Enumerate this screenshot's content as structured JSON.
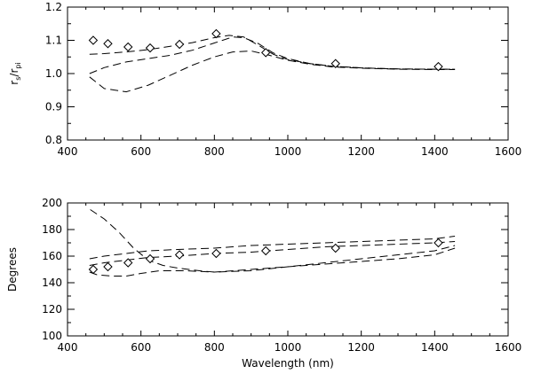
{
  "chart_data": [
    {
      "type": "line",
      "title": "",
      "xlabel": "",
      "ylabel_main": "r",
      "ylabel_sub1": "s",
      "ylabel_sep": "/r",
      "ylabel_sub2": "pi",
      "xlim": [
        400,
        1600
      ],
      "ylim": [
        0.8,
        1.2
      ],
      "xticks": [
        "400",
        "600",
        "800",
        "1000",
        "1200",
        "1400",
        "1600"
      ],
      "yticks": [
        "0.8",
        "0.9",
        "1.0",
        "1.1",
        "1.2"
      ],
      "grid": false,
      "markers": {
        "x": [
          470,
          510,
          565,
          625,
          705,
          805,
          940,
          1130,
          1410
        ],
        "y": [
          1.1,
          1.09,
          1.08,
          1.077,
          1.088,
          1.12,
          1.063,
          1.03,
          1.021
        ]
      },
      "series": [
        {
          "x": [
            460,
            500,
            560,
            620,
            680,
            740,
            800,
            840,
            880,
            920,
            960,
            1000,
            1060,
            1120,
            1200,
            1300,
            1400,
            1455
          ],
          "y": [
            1.058,
            1.06,
            1.065,
            1.072,
            1.082,
            1.093,
            1.108,
            1.115,
            1.11,
            1.085,
            1.058,
            1.042,
            1.03,
            1.022,
            1.017,
            1.014,
            1.013,
            1.013
          ]
        },
        {
          "x": [
            460,
            500,
            560,
            620,
            680,
            740,
            800,
            850,
            880,
            920,
            960,
            1000,
            1060,
            1120,
            1200,
            1300,
            1400,
            1455
          ],
          "y": [
            1.0,
            1.018,
            1.035,
            1.045,
            1.055,
            1.07,
            1.092,
            1.11,
            1.108,
            1.09,
            1.062,
            1.045,
            1.03,
            1.022,
            1.017,
            1.014,
            1.013,
            1.013
          ]
        },
        {
          "x": [
            460,
            500,
            560,
            620,
            680,
            740,
            800,
            850,
            900,
            950,
            1000,
            1060,
            1120,
            1200,
            1300,
            1400,
            1455
          ],
          "y": [
            0.99,
            0.955,
            0.945,
            0.965,
            0.995,
            1.025,
            1.05,
            1.065,
            1.068,
            1.055,
            1.04,
            1.028,
            1.02,
            1.016,
            1.013,
            1.012,
            1.012
          ]
        }
      ]
    },
    {
      "type": "line",
      "title": "",
      "xlabel": "Wavelength (nm)",
      "ylabel": "Degrees",
      "xlim": [
        400,
        1600
      ],
      "ylim": [
        100,
        200
      ],
      "xticks": [
        "400",
        "600",
        "800",
        "1000",
        "1200",
        "1400",
        "1600"
      ],
      "yticks": [
        "100",
        "120",
        "140",
        "160",
        "180",
        "200"
      ],
      "grid": false,
      "markers": {
        "x": [
          470,
          510,
          565,
          625,
          705,
          805,
          940,
          1130,
          1410
        ],
        "y": [
          150,
          152,
          155,
          158,
          161,
          162,
          164,
          166,
          170
        ]
      },
      "series": [
        {
          "x": [
            460,
            500,
            560,
            620,
            700,
            800,
            900,
            1000,
            1100,
            1200,
            1300,
            1400,
            1455
          ],
          "y": [
            158,
            160,
            162,
            164,
            165,
            166,
            168,
            169,
            170,
            171,
            172,
            173,
            175
          ]
        },
        {
          "x": [
            460,
            500,
            560,
            620,
            700,
            800,
            900,
            1000,
            1100,
            1200,
            1300,
            1400,
            1455
          ],
          "y": [
            153,
            155,
            157,
            159,
            160,
            162,
            163,
            165,
            167,
            168,
            169,
            170,
            171
          ]
        },
        {
          "x": [
            460,
            480,
            520,
            560,
            600,
            650,
            720,
            800,
            900,
            1000,
            1100,
            1200,
            1300,
            1400,
            1455
          ],
          "y": [
            148,
            146,
            145,
            145,
            147,
            149,
            149,
            148,
            150,
            152,
            154,
            156,
            158,
            161,
            166
          ]
        },
        {
          "x": [
            462,
            500,
            540,
            580,
            620,
            660,
            700,
            760,
            800,
            900,
            1000,
            1100,
            1200,
            1300,
            1400,
            1455
          ],
          "y": [
            195,
            188,
            178,
            166,
            157,
            153,
            151,
            149,
            148,
            149,
            152,
            155,
            158,
            161,
            164,
            168
          ]
        }
      ]
    }
  ]
}
